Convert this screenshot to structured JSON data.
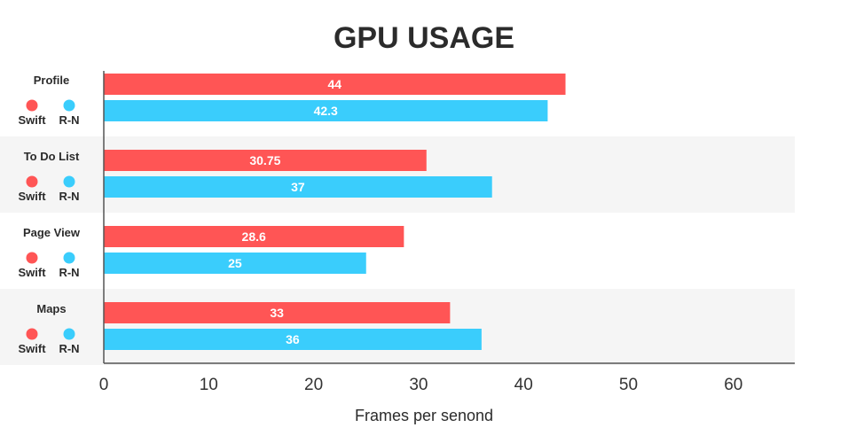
{
  "chart_data": {
    "type": "bar",
    "orientation": "horizontal",
    "title": "GPU USAGE",
    "xlabel": "Frames per senond",
    "ylabel": "",
    "xlim": [
      0,
      65
    ],
    "xticks": [
      0,
      10,
      20,
      30,
      40,
      50,
      60
    ],
    "categories": [
      "Profile",
      "To Do List",
      "Page View",
      "Maps"
    ],
    "series": [
      {
        "name": "Swift",
        "color": "#ff5555",
        "values": [
          44,
          30.75,
          28.6,
          33
        ],
        "labels": [
          "44",
          "30.75",
          "28.6",
          "33"
        ]
      },
      {
        "name": "R-N",
        "color": "#3acdfc",
        "values": [
          42.3,
          37,
          25,
          36
        ],
        "labels": [
          "42.3",
          "37",
          "25",
          "36"
        ]
      }
    ],
    "legend": "under each category label",
    "grid": false,
    "band_color": "#f5f5f5"
  }
}
